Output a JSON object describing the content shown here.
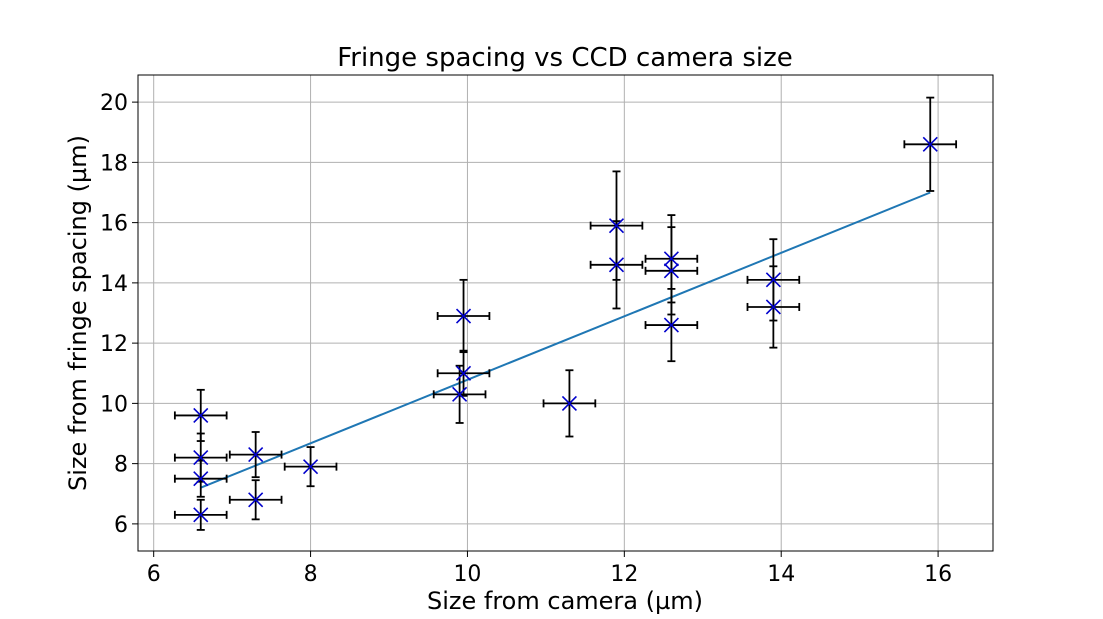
{
  "chart_data": {
    "type": "scatter",
    "title": "Fringe spacing vs CCD camera size",
    "xlabel": "Size from camera (µm)",
    "ylabel": "Size from fringe spacing (µm)",
    "xlim": [
      5.8,
      16.7
    ],
    "ylim": [
      5.1,
      20.9
    ],
    "xticks": [
      6,
      8,
      10,
      12,
      14,
      16
    ],
    "yticks": [
      6,
      8,
      10,
      12,
      14,
      16,
      18,
      20
    ],
    "grid": true,
    "marker": "x",
    "marker_color": "#0000cc",
    "errorbar_color": "#000000",
    "fit_line_color": "#1f77b4",
    "points": [
      {
        "x": 6.6,
        "y": 9.6,
        "xerr": 0.33,
        "yerr": 0.85
      },
      {
        "x": 6.6,
        "y": 8.2,
        "xerr": 0.33,
        "yerr": 0.8
      },
      {
        "x": 6.6,
        "y": 7.5,
        "xerr": 0.33,
        "yerr": 0.6
      },
      {
        "x": 6.6,
        "y": 6.3,
        "xerr": 0.33,
        "yerr": 0.5
      },
      {
        "x": 7.3,
        "y": 8.3,
        "xerr": 0.33,
        "yerr": 0.75
      },
      {
        "x": 7.3,
        "y": 6.8,
        "xerr": 0.33,
        "yerr": 0.65
      },
      {
        "x": 8.0,
        "y": 7.9,
        "xerr": 0.33,
        "yerr": 0.65
      },
      {
        "x": 9.95,
        "y": 12.9,
        "xerr": 0.33,
        "yerr": 1.2
      },
      {
        "x": 9.95,
        "y": 11.0,
        "xerr": 0.33,
        "yerr": 0.75
      },
      {
        "x": 9.9,
        "y": 10.3,
        "xerr": 0.33,
        "yerr": 0.95
      },
      {
        "x": 11.3,
        "y": 10.0,
        "xerr": 0.33,
        "yerr": 1.1
      },
      {
        "x": 11.9,
        "y": 15.9,
        "xerr": 0.33,
        "yerr": 1.8
      },
      {
        "x": 11.9,
        "y": 14.6,
        "xerr": 0.33,
        "yerr": 1.45
      },
      {
        "x": 12.6,
        "y": 14.8,
        "xerr": 0.33,
        "yerr": 1.45
      },
      {
        "x": 12.6,
        "y": 14.4,
        "xerr": 0.33,
        "yerr": 1.45
      },
      {
        "x": 12.6,
        "y": 12.6,
        "xerr": 0.33,
        "yerr": 1.2
      },
      {
        "x": 13.9,
        "y": 14.1,
        "xerr": 0.33,
        "yerr": 1.35
      },
      {
        "x": 13.9,
        "y": 13.2,
        "xerr": 0.33,
        "yerr": 1.35
      },
      {
        "x": 15.9,
        "y": 18.6,
        "xerr": 0.33,
        "yerr": 1.55
      }
    ],
    "fit_line": {
      "x": [
        6.6,
        15.9
      ],
      "y": [
        7.2,
        17.0
      ]
    }
  }
}
